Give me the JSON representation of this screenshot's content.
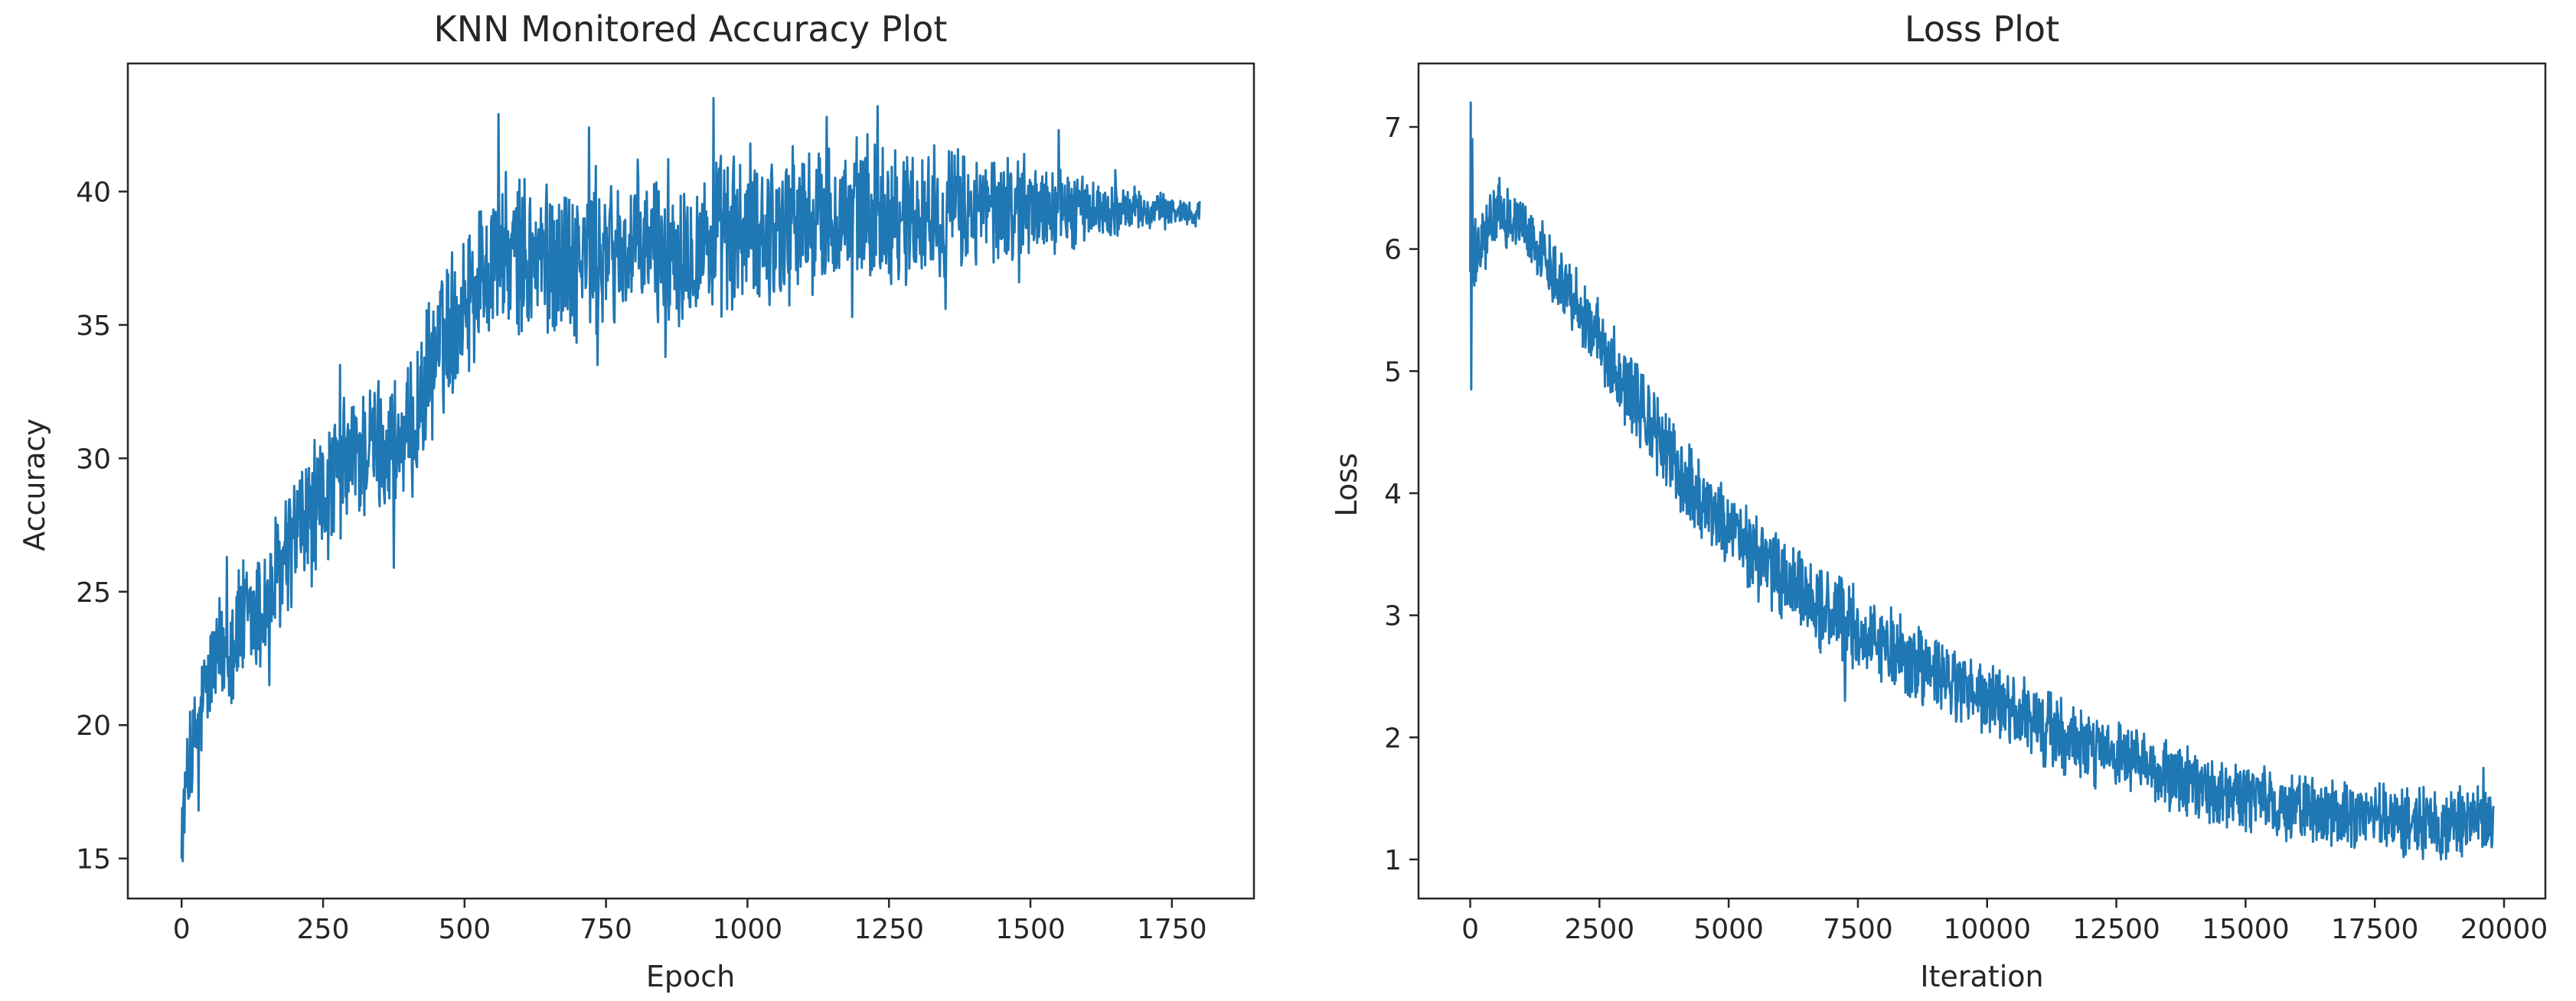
{
  "chart_data": [
    {
      "type": "line",
      "title": "KNN Monitored Accuracy Plot",
      "xlabel": "Epoch",
      "ylabel": "Accuracy",
      "xlim": [
        -95,
        1895
      ],
      "ylim": [
        13.5,
        44.8
      ],
      "xticks": [
        0,
        250,
        500,
        750,
        1000,
        1250,
        1500,
        1750
      ],
      "yticks": [
        15,
        20,
        25,
        30,
        35,
        40
      ],
      "grid": false,
      "color": "#1f77b4",
      "series": [
        {
          "n_points": 1800,
          "x_start": 0,
          "x_end": 1799,
          "trend": [
            [
              0,
              16.5
            ],
            [
              20,
              19
            ],
            [
              50,
              22
            ],
            [
              100,
              23.5
            ],
            [
              150,
              24.5
            ],
            [
              200,
              27
            ],
            [
              250,
              28.5
            ],
            [
              300,
              30
            ],
            [
              350,
              30.5
            ],
            [
              400,
              30.5
            ],
            [
              450,
              34
            ],
            [
              500,
              36
            ],
            [
              550,
              37.5
            ],
            [
              600,
              37.5
            ],
            [
              700,
              37.5
            ],
            [
              800,
              37.8
            ],
            [
              900,
              38
            ],
            [
              1000,
              38.5
            ],
            [
              1100,
              38.8
            ],
            [
              1200,
              39.2
            ],
            [
              1300,
              39.2
            ],
            [
              1400,
              39.3
            ],
            [
              1500,
              39.4
            ],
            [
              1600,
              39.3
            ],
            [
              1700,
              39.3
            ],
            [
              1799,
              39.2
            ]
          ],
          "noise": [
            [
              0,
              1.5
            ],
            [
              100,
              2.2
            ],
            [
              400,
              2.2
            ],
            [
              600,
              2.5
            ],
            [
              1000,
              2.6
            ],
            [
              1250,
              2.3
            ],
            [
              1500,
              1.6
            ],
            [
              1650,
              0.8
            ],
            [
              1799,
              0.4
            ]
          ],
          "extremes": [
            [
              0,
              15.0
            ],
            [
              2,
              14.9
            ],
            [
              15,
              20.5
            ],
            [
              30,
              16.8
            ],
            [
              45,
              22.2
            ],
            [
              80,
              26.3
            ],
            [
              155,
              21.5
            ],
            [
              280,
              33.5
            ],
            [
              375,
              25.9
            ],
            [
              560,
              42.9
            ],
            [
              720,
              42.4
            ],
            [
              735,
              33.5
            ],
            [
              855,
              33.8
            ],
            [
              940,
              43.5
            ],
            [
              1080,
              41.7
            ],
            [
              1140,
              42.8
            ],
            [
              1185,
              35.3
            ],
            [
              1230,
              43.2
            ],
            [
              1280,
              36.5
            ],
            [
              1350,
              35.6
            ],
            [
              1480,
              36.6
            ],
            [
              1550,
              42.3
            ],
            [
              1650,
              40.8
            ]
          ]
        }
      ]
    },
    {
      "type": "line",
      "title": "Loss Plot",
      "xlabel": "Iteration",
      "ylabel": "Loss",
      "xlim": [
        -1000,
        20800
      ],
      "ylim": [
        0.68,
        7.52
      ],
      "xticks": [
        0,
        2500,
        5000,
        7500,
        10000,
        12500,
        15000,
        17500,
        20000
      ],
      "yticks": [
        1,
        2,
        3,
        4,
        5,
        6,
        7
      ],
      "grid": false,
      "color": "#1f77b4",
      "series": [
        {
          "n_points": 2000,
          "x_start": 0,
          "x_end": 19800,
          "trend": [
            [
              0,
              5.9
            ],
            [
              150,
              5.95
            ],
            [
              500,
              6.3
            ],
            [
              1000,
              6.2
            ],
            [
              2000,
              5.6
            ],
            [
              3000,
              4.9
            ],
            [
              4000,
              4.2
            ],
            [
              5000,
              3.7
            ],
            [
              6000,
              3.3
            ],
            [
              7000,
              3.0
            ],
            [
              8000,
              2.75
            ],
            [
              9000,
              2.5
            ],
            [
              10000,
              2.3
            ],
            [
              11000,
              2.1
            ],
            [
              12000,
              1.9
            ],
            [
              13000,
              1.75
            ],
            [
              14000,
              1.6
            ],
            [
              15000,
              1.5
            ],
            [
              16000,
              1.42
            ],
            [
              17000,
              1.36
            ],
            [
              18000,
              1.33
            ],
            [
              19000,
              1.3
            ],
            [
              19800,
              1.3
            ]
          ],
          "noise": [
            [
              0,
              0.25
            ],
            [
              1000,
              0.2
            ],
            [
              2000,
              0.25
            ],
            [
              4000,
              0.3
            ],
            [
              8000,
              0.28
            ],
            [
              12000,
              0.25
            ],
            [
              16000,
              0.22
            ],
            [
              19800,
              0.25
            ]
          ],
          "extremes": [
            [
              10,
              7.2
            ],
            [
              20,
              4.85
            ],
            [
              40,
              6.9
            ],
            [
              80,
              5.7
            ],
            [
              7250,
              2.3
            ],
            [
              19600,
              1.75
            ]
          ]
        }
      ]
    }
  ]
}
